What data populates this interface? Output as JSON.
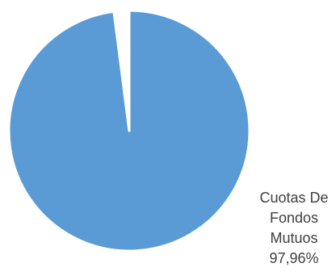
{
  "chart_data": {
    "type": "pie",
    "title": "",
    "slices": [
      {
        "label_lines": [
          "Cuotas De",
          "Fondos",
          "Mutuos",
          "97,96%"
        ],
        "percent": 97.96,
        "color": "#5b9bd5"
      },
      {
        "label_lines": [],
        "percent": 2.04,
        "color": "#ffffff"
      }
    ],
    "slice_border_color": "#ffffff"
  }
}
